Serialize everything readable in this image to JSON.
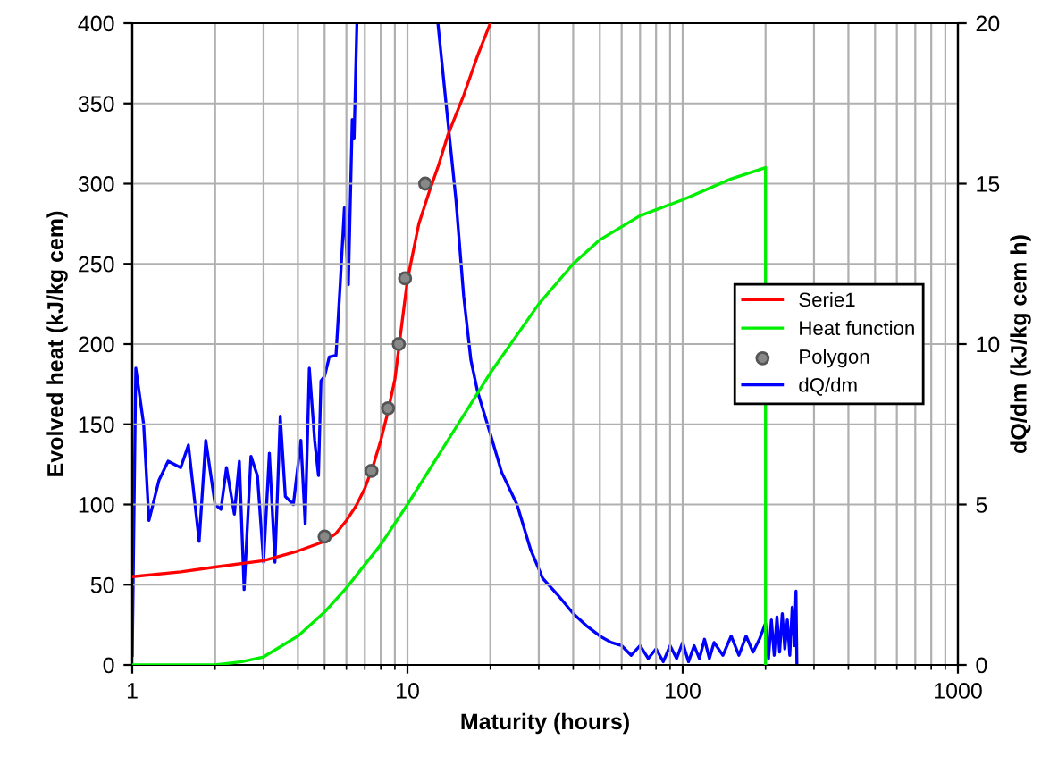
{
  "chart_data": {
    "type": "line",
    "xlabel": "Maturity (hours)",
    "ylabel": "Evolved heat (kJ/kg cem)",
    "y2label": "dQ/dm (kJ/kg cem h)",
    "log": "x",
    "grid": true,
    "legend": "right",
    "xlim": [
      1,
      1000
    ],
    "xticks": [
      1,
      10,
      100,
      1000
    ],
    "ylim": [
      0,
      400
    ],
    "yticks": [
      0,
      50,
      100,
      150,
      200,
      250,
      300,
      350,
      400
    ],
    "y2lim": [
      0,
      20
    ],
    "y2ticks": [
      0,
      5,
      10,
      15,
      20
    ],
    "series": [
      {
        "name": "Serie1",
        "color": "#ff0000",
        "x": [
          1,
          1.5,
          2,
          3,
          4,
          5,
          5.5,
          6,
          6.5,
          7,
          7.5,
          8,
          8.5,
          9,
          9.5,
          10,
          10.5,
          11,
          12,
          13,
          14,
          16,
          18,
          20
        ],
        "values": [
          55,
          58,
          61,
          65,
          71,
          77,
          82,
          90,
          99,
          110,
          124,
          140,
          158,
          178,
          210,
          240,
          258,
          275,
          295,
          312,
          330,
          355,
          380,
          400
        ]
      },
      {
        "name": "Heat function",
        "color": "#00ee00",
        "x": [
          1,
          2,
          2.5,
          3,
          3.5,
          4,
          5,
          6,
          8,
          10,
          15,
          20,
          30,
          40,
          50,
          70,
          100,
          150,
          200,
          200
        ],
        "values": [
          0,
          0,
          2,
          5,
          12,
          18,
          33,
          48,
          75,
          100,
          148,
          182,
          225,
          250,
          265,
          280,
          290,
          303,
          310,
          0
        ]
      },
      {
        "name": "Polygon",
        "type": "scatter",
        "marker": "circle",
        "color": "#555555",
        "x": [
          5,
          7.4,
          8.5,
          9.3,
          9.8,
          11.6
        ],
        "values": [
          80,
          121,
          160,
          200,
          241,
          300
        ]
      },
      {
        "name": "dQ/dm",
        "axis": "y2",
        "color": "#0000ff",
        "x": [
          1,
          1.03,
          1.1,
          1.15,
          1.25,
          1.35,
          1.5,
          1.6,
          1.75,
          1.85,
          2.0,
          2.1,
          2.2,
          2.35,
          2.45,
          2.55,
          2.7,
          2.85,
          3.0,
          3.15,
          3.3,
          3.45,
          3.6,
          3.85,
          4.1,
          4.25,
          4.4,
          4.6,
          4.75,
          4.85,
          5.0,
          5.2,
          5.5,
          5.7,
          5.9,
          6.1,
          6.3,
          6.4,
          6.55,
          10,
          12.9,
          14,
          15,
          16,
          17,
          18,
          20,
          22,
          25,
          28,
          31,
          35,
          40,
          45,
          50,
          55,
          60,
          65,
          70,
          75,
          80,
          85,
          90,
          95,
          100,
          105,
          110,
          115,
          120,
          125,
          130,
          140,
          150,
          160,
          170,
          180,
          190,
          200,
          205,
          210,
          215,
          220,
          225,
          230,
          235,
          240,
          245,
          250,
          255,
          258,
          260
        ],
        "values": [
          0.3,
          9.25,
          7.5,
          4.5,
          5.75,
          6.35,
          6.15,
          6.85,
          3.85,
          7.0,
          5.0,
          4.85,
          6.15,
          4.7,
          6.35,
          2.35,
          6.5,
          5.9,
          3.2,
          6.6,
          3.2,
          7.75,
          5.25,
          5.0,
          7.0,
          4.4,
          9.25,
          7.0,
          5.9,
          8.85,
          9.0,
          9.6,
          9.65,
          11.9,
          14.25,
          11.85,
          17.0,
          16.4,
          20,
          null,
          20,
          17,
          14.5,
          11.5,
          9.5,
          8.5,
          7.2,
          6.0,
          5.0,
          3.6,
          2.7,
          2.2,
          1.6,
          1.2,
          0.9,
          0.7,
          0.6,
          0.3,
          0.6,
          0.2,
          0.5,
          0.1,
          0.6,
          0.2,
          0.7,
          0.1,
          0.6,
          0.2,
          0.8,
          0.2,
          0.7,
          0.3,
          0.9,
          0.3,
          0.9,
          0.4,
          0.8,
          1.3,
          0.2,
          1.4,
          0.3,
          1.5,
          0.4,
          1.6,
          0.5,
          1.4,
          0.3,
          1.8,
          0.6,
          2.3,
          0
        ]
      }
    ]
  }
}
